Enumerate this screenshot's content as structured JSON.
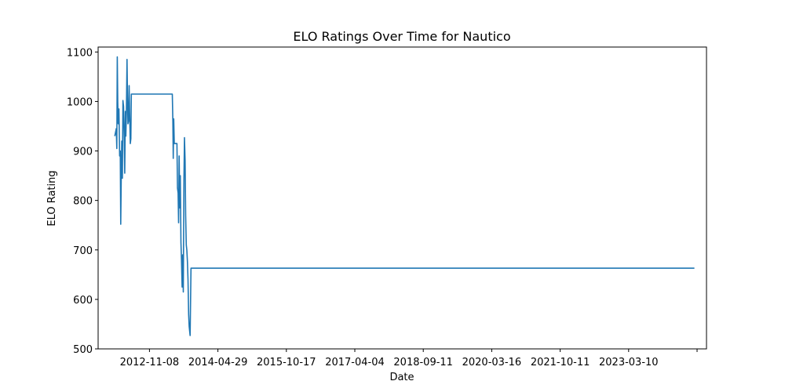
{
  "chart_data": {
    "type": "line",
    "title": "ELO Ratings Over Time for Nautico",
    "xlabel": "Date",
    "ylabel": "ELO Rating",
    "ylim": [
      500,
      1110
    ],
    "xlim": [
      "2011-09-01",
      "2025-09-30"
    ],
    "grid": false,
    "legend": "none",
    "x_ticks": [
      "2012-11-08",
      "2014-04-29",
      "2015-10-17",
      "2017-04-04",
      "2018-09-11",
      "2020-03-16",
      "2021-10-11",
      "2023-03-10",
      ""
    ],
    "y_ticks": [
      500,
      600,
      700,
      800,
      900,
      1000,
      1100
    ],
    "series": [
      {
        "color": "#1f77b4",
        "points": [
          [
            "2012-01-20",
            930
          ],
          [
            "2012-02-01",
            945
          ],
          [
            "2012-02-06",
            905
          ],
          [
            "2012-02-10",
            1090
          ],
          [
            "2012-02-14",
            1000
          ],
          [
            "2012-02-18",
            955
          ],
          [
            "2012-02-24",
            985
          ],
          [
            "2012-03-01",
            890
          ],
          [
            "2012-03-06",
            900
          ],
          [
            "2012-03-10",
            752
          ],
          [
            "2012-03-14",
            840
          ],
          [
            "2012-03-19",
            920
          ],
          [
            "2012-03-24",
            845
          ],
          [
            "2012-03-29",
            1002
          ],
          [
            "2012-04-03",
            990
          ],
          [
            "2012-04-08",
            930
          ],
          [
            "2012-04-13",
            855
          ],
          [
            "2012-04-18",
            980
          ],
          [
            "2012-04-22",
            930
          ],
          [
            "2012-04-27",
            975
          ],
          [
            "2012-05-02",
            1085
          ],
          [
            "2012-05-06",
            1010
          ],
          [
            "2012-05-10",
            955
          ],
          [
            "2012-05-15",
            960
          ],
          [
            "2012-05-20",
            1032
          ],
          [
            "2012-05-25",
            972
          ],
          [
            "2012-05-30",
            915
          ],
          [
            "2012-06-04",
            925
          ],
          [
            "2012-06-08",
            1015
          ],
          [
            "2012-06-15",
            1015
          ],
          [
            "2013-05-20",
            1015
          ],
          [
            "2013-05-25",
            960
          ],
          [
            "2013-05-28",
            885
          ],
          [
            "2013-06-01",
            965
          ],
          [
            "2013-06-06",
            915
          ],
          [
            "2013-06-28",
            915
          ],
          [
            "2013-07-03",
            825
          ],
          [
            "2013-07-08",
            815
          ],
          [
            "2013-07-12",
            755
          ],
          [
            "2013-07-17",
            890
          ],
          [
            "2013-07-22",
            785
          ],
          [
            "2013-07-27",
            850
          ],
          [
            "2013-08-01",
            715
          ],
          [
            "2013-08-06",
            680
          ],
          [
            "2013-08-11",
            625
          ],
          [
            "2013-08-16",
            690
          ],
          [
            "2013-08-21",
            615
          ],
          [
            "2013-08-26",
            840
          ],
          [
            "2013-08-31",
            927
          ],
          [
            "2013-09-05",
            880
          ],
          [
            "2013-09-10",
            770
          ],
          [
            "2013-09-15",
            710
          ],
          [
            "2013-09-20",
            700
          ],
          [
            "2013-09-25",
            675
          ],
          [
            "2013-09-30",
            640
          ],
          [
            "2013-10-05",
            570
          ],
          [
            "2013-10-10",
            545
          ],
          [
            "2013-10-18",
            527
          ],
          [
            "2013-10-25",
            663
          ],
          [
            "2025-06-20",
            663
          ]
        ]
      }
    ]
  }
}
